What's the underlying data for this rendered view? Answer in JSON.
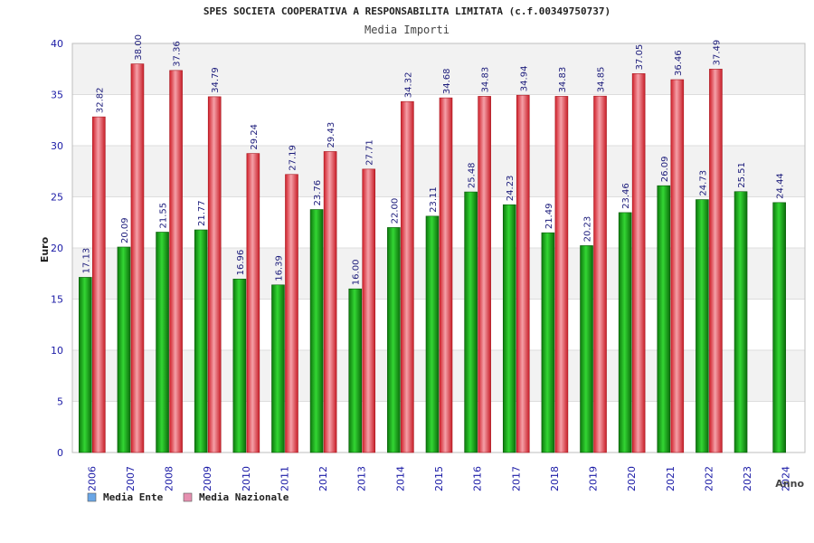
{
  "chart_data": {
    "type": "bar",
    "title": "SPES SOCIETA COOPERATIVA A RESPONSABILITA LIMITATA (c.f.00349750737)",
    "subtitle": "Media Importi",
    "xlabel": "Anno",
    "ylabel": "Euro",
    "ylim": [
      0,
      40
    ],
    "yticks": [
      0,
      5,
      10,
      15,
      20,
      25,
      30,
      35,
      40
    ],
    "grid": true,
    "legend_position": "bottom-left",
    "categories": [
      "2006",
      "2007",
      "2008",
      "2009",
      "2010",
      "2011",
      "2012",
      "2013",
      "2014",
      "2015",
      "2016",
      "2017",
      "2018",
      "2019",
      "2020",
      "2021",
      "2022",
      "2023",
      "2024"
    ],
    "series": [
      {
        "name": "Media Ente",
        "color": "#1fae1f",
        "legend_color": "#6aa6e6",
        "values": [
          17.13,
          20.09,
          21.55,
          21.77,
          16.96,
          16.39,
          23.76,
          16.0,
          22.0,
          23.11,
          25.48,
          24.23,
          21.49,
          20.23,
          23.46,
          26.09,
          24.73,
          25.51,
          24.44
        ],
        "labels": [
          "17.13",
          "20.09",
          "21.55",
          "21.77",
          "16.96",
          "16.39",
          "23.76",
          "16.00",
          "22.00",
          "23.11",
          "25.48",
          "24.23",
          "21.49",
          "20.23",
          "23.46",
          "26.09",
          "24.73",
          "25.51",
          "24.44"
        ]
      },
      {
        "name": "Media Nazionale",
        "color": "#e8323a",
        "legend_color": "#e690b0",
        "values": [
          32.82,
          38.0,
          37.36,
          34.79,
          29.24,
          27.19,
          29.43,
          27.71,
          34.32,
          34.68,
          34.83,
          34.94,
          34.83,
          34.85,
          37.05,
          36.46,
          37.49,
          null,
          null
        ],
        "labels": [
          "32.82",
          "38.00",
          "37.36",
          "34.79",
          "29.24",
          "27.19",
          "29.43",
          "27.71",
          "34.32",
          "34.68",
          "34.83",
          "34.94",
          "34.83",
          "34.85",
          "37.05",
          "36.46",
          "37.49",
          null,
          null
        ]
      }
    ]
  }
}
